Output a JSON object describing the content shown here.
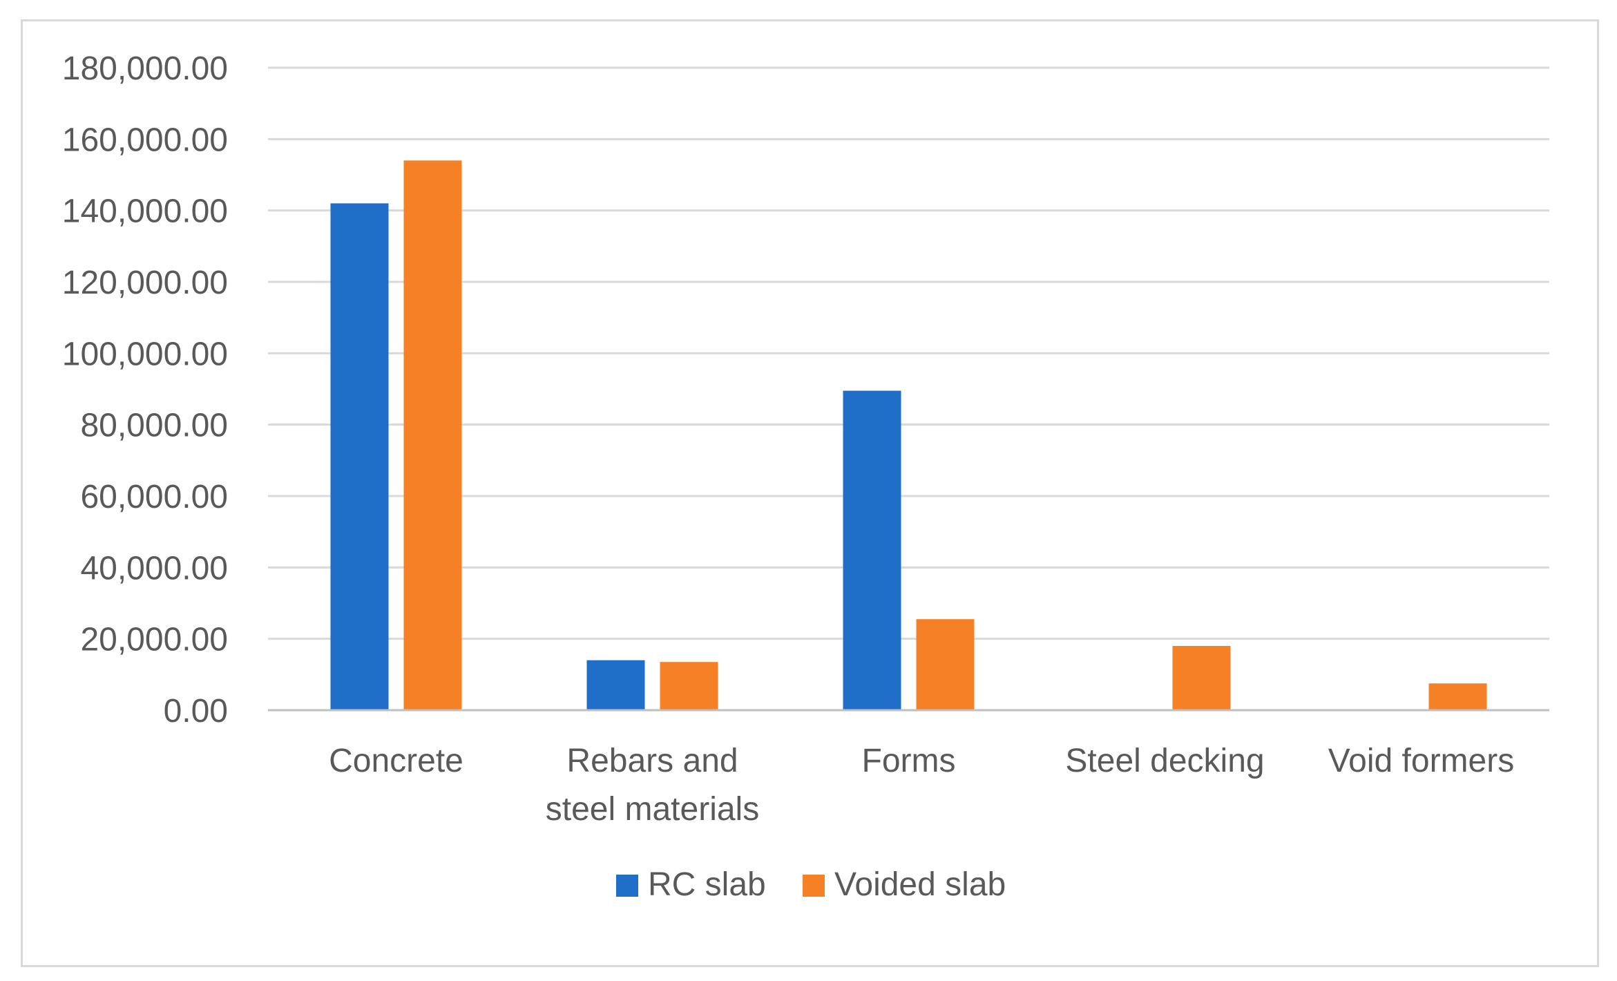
{
  "chart_data": {
    "type": "bar",
    "title": "",
    "xlabel": "",
    "ylabel": "",
    "ylim": [
      0,
      180000
    ],
    "y_step": 20000,
    "grid": true,
    "legend_position": "bottom",
    "categories": [
      [
        "Concrete"
      ],
      [
        "Rebars and",
        "steel materials"
      ],
      [
        "Forms"
      ],
      [
        "Steel decking"
      ],
      [
        "Void formers"
      ]
    ],
    "y_tick_labels": [
      "0.00",
      "20,000.00",
      "40,000.00",
      "60,000.00",
      "80,000.00",
      "100,000.00",
      "120,000.00",
      "140,000.00",
      "160,000.00",
      "180,000.00"
    ],
    "series": [
      {
        "name": "RC slab",
        "color": "#1f6fc9",
        "values": [
          142000,
          14000,
          89500,
          0,
          0
        ]
      },
      {
        "name": "Voided slab",
        "color": "#f58025",
        "values": [
          154000,
          13500,
          25500,
          18000,
          7500
        ]
      }
    ]
  },
  "colors": {
    "grid": "#d9d9d9",
    "axis": "#bfbfbf",
    "text": "#595959"
  }
}
